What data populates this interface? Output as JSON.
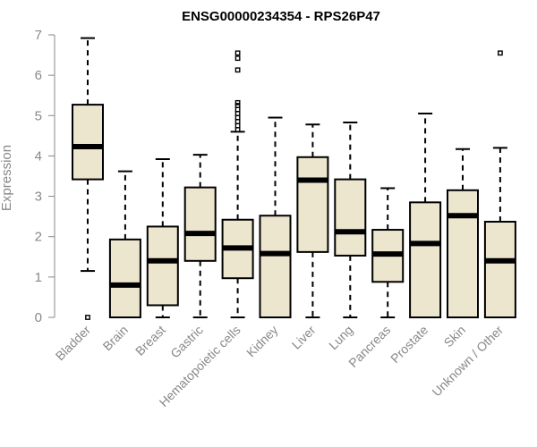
{
  "chart_data": {
    "type": "boxplot",
    "title": "ENSG00000234354 - RPS26P47",
    "xlabel": "",
    "ylabel": "Expression",
    "ylim": [
      0,
      7
    ],
    "yticks": [
      0,
      1,
      2,
      3,
      4,
      5,
      6,
      7
    ],
    "grid": false,
    "box_color": "#ede6cf",
    "categories": [
      "Bladder",
      "Brain",
      "Breast",
      "Gastric",
      "Hematopoietic cells",
      "Kidney",
      "Liver",
      "Lung",
      "Pancreas",
      "Prostate",
      "Skin",
      "Unknown / Other"
    ],
    "boxes": [
      {
        "min": 1.15,
        "q1": 3.42,
        "median": 4.23,
        "q3": 5.27,
        "max": 6.92,
        "outliers": [
          0.0
        ]
      },
      {
        "min": 0.0,
        "q1": 0.0,
        "median": 0.8,
        "q3": 1.93,
        "max": 3.62,
        "outliers": []
      },
      {
        "min": 0.0,
        "q1": 0.3,
        "median": 1.4,
        "q3": 2.25,
        "max": 3.92,
        "outliers": []
      },
      {
        "min": 0.0,
        "q1": 1.4,
        "median": 2.08,
        "q3": 3.22,
        "max": 4.03,
        "outliers": []
      },
      {
        "min": 0.0,
        "q1": 0.97,
        "median": 1.72,
        "q3": 2.42,
        "max": 4.6,
        "outliers": [
          4.65,
          4.75,
          4.85,
          4.95,
          5.05,
          5.15,
          5.25,
          5.32,
          6.13,
          6.42,
          6.55
        ]
      },
      {
        "min": 0.0,
        "q1": 0.0,
        "median": 1.58,
        "q3": 2.52,
        "max": 4.95,
        "outliers": []
      },
      {
        "min": 0.0,
        "q1": 1.62,
        "median": 3.4,
        "q3": 3.97,
        "max": 4.78,
        "outliers": []
      },
      {
        "min": 0.0,
        "q1": 1.53,
        "median": 2.12,
        "q3": 3.42,
        "max": 4.83,
        "outliers": []
      },
      {
        "min": 0.0,
        "q1": 0.88,
        "median": 1.57,
        "q3": 2.17,
        "max": 3.2,
        "outliers": []
      },
      {
        "min": 0.0,
        "q1": 0.0,
        "median": 1.83,
        "q3": 2.85,
        "max": 5.05,
        "outliers": []
      },
      {
        "min": 0.0,
        "q1": 0.0,
        "median": 2.52,
        "q3": 3.15,
        "max": 4.17,
        "outliers": []
      },
      {
        "min": 0.0,
        "q1": 0.0,
        "median": 1.4,
        "q3": 2.37,
        "max": 4.2,
        "outliers": [
          6.55
        ]
      }
    ]
  }
}
